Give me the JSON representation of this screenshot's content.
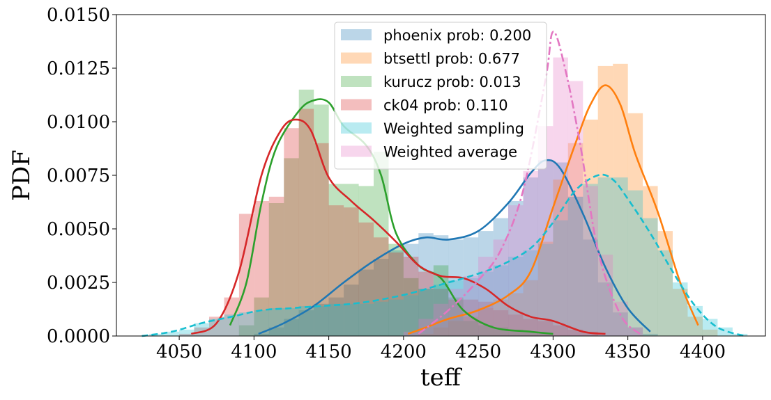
{
  "chart_data": {
    "type": "histogram+kde",
    "xlabel": "teff",
    "ylabel": "PDF",
    "xlim": [
      4008,
      4442
    ],
    "ylim": [
      0,
      0.015
    ],
    "xticks": [
      "4050",
      "4100",
      "4150",
      "4200",
      "4250",
      "4300",
      "4350",
      "4400"
    ],
    "yticks": [
      "0.0000",
      "0.0025",
      "0.0050",
      "0.0075",
      "0.0100",
      "0.0125",
      "0.0150"
    ],
    "grid": false,
    "legend_position": "top-center",
    "bin_width": 10,
    "series": [
      {
        "name": "phoenix prob: 0.200",
        "color": "#1f77b4",
        "hist_bins": [
          [
            4100,
            0.0001
          ],
          [
            4110,
            0.0004
          ],
          [
            4120,
            0.0008
          ],
          [
            4130,
            0.0012
          ],
          [
            4140,
            0.0015
          ],
          [
            4150,
            0.0018
          ],
          [
            4160,
            0.0024
          ],
          [
            4170,
            0.0031
          ],
          [
            4180,
            0.0036
          ],
          [
            4190,
            0.004
          ],
          [
            4200,
            0.0043
          ],
          [
            4210,
            0.0048
          ],
          [
            4220,
            0.0047
          ],
          [
            4230,
            0.0045
          ],
          [
            4240,
            0.0046
          ],
          [
            4250,
            0.0049
          ],
          [
            4260,
            0.0055
          ],
          [
            4270,
            0.0063
          ],
          [
            4280,
            0.0074
          ],
          [
            4290,
            0.0082
          ],
          [
            4300,
            0.0081
          ],
          [
            4310,
            0.0065
          ],
          [
            4320,
            0.0045
          ],
          [
            4330,
            0.0025
          ],
          [
            4340,
            0.0011
          ],
          [
            4350,
            0.0004
          ],
          [
            4360,
            0.0001
          ]
        ],
        "kde": [
          [
            4103,
            0.0001
          ],
          [
            4120,
            0.0006
          ],
          [
            4140,
            0.0014
          ],
          [
            4160,
            0.0025
          ],
          [
            4180,
            0.0035
          ],
          [
            4200,
            0.0043
          ],
          [
            4215,
            0.0046
          ],
          [
            4230,
            0.0045
          ],
          [
            4250,
            0.0049
          ],
          [
            4270,
            0.0062
          ],
          [
            4285,
            0.0076
          ],
          [
            4295,
            0.0082
          ],
          [
            4305,
            0.0078
          ],
          [
            4320,
            0.0057
          ],
          [
            4335,
            0.0032
          ],
          [
            4350,
            0.0013
          ],
          [
            4365,
            0.0002
          ]
        ]
      },
      {
        "name": "btsettl prob: 0.677",
        "color": "#ff7f0e",
        "hist_bins": [
          [
            4210,
            0.0001
          ],
          [
            4220,
            0.0004
          ],
          [
            4230,
            0.0007
          ],
          [
            4240,
            0.0009
          ],
          [
            4250,
            0.0013
          ],
          [
            4260,
            0.0017
          ],
          [
            4270,
            0.002
          ],
          [
            4280,
            0.0026
          ],
          [
            4290,
            0.0044
          ],
          [
            4300,
            0.0073
          ],
          [
            4310,
            0.009
          ],
          [
            4320,
            0.0101
          ],
          [
            4330,
            0.0126
          ],
          [
            4340,
            0.0127
          ],
          [
            4350,
            0.0104
          ],
          [
            4360,
            0.007
          ],
          [
            4370,
            0.0049
          ],
          [
            4380,
            0.0022
          ],
          [
            4390,
            0.0009
          ],
          [
            4400,
            0.0003
          ]
        ],
        "kde": [
          [
            4203,
            0.0001
          ],
          [
            4215,
            0.0004
          ],
          [
            4230,
            0.0008
          ],
          [
            4250,
            0.0012
          ],
          [
            4270,
            0.0019
          ],
          [
            4285,
            0.003
          ],
          [
            4300,
            0.006
          ],
          [
            4315,
            0.009
          ],
          [
            4325,
            0.0108
          ],
          [
            4335,
            0.0117
          ],
          [
            4345,
            0.0108
          ],
          [
            4355,
            0.0085
          ],
          [
            4370,
            0.0058
          ],
          [
            4385,
            0.0025
          ],
          [
            4397,
            0.0005
          ]
        ]
      },
      {
        "name": "kurucz prob: 0.013",
        "color": "#2ca02c",
        "hist_bins": [
          [
            4090,
            0.0005
          ],
          [
            4100,
            0.0018
          ],
          [
            4110,
            0.0062
          ],
          [
            4120,
            0.0083
          ],
          [
            4130,
            0.0115
          ],
          [
            4140,
            0.0108
          ],
          [
            4150,
            0.0071
          ],
          [
            4160,
            0.0071
          ],
          [
            4170,
            0.007
          ],
          [
            4180,
            0.0086
          ],
          [
            4190,
            0.0043
          ],
          [
            4200,
            0.0027
          ],
          [
            4210,
            0.0022
          ],
          [
            4220,
            0.0033
          ],
          [
            4230,
            0.0018
          ],
          [
            4240,
            0.0007
          ],
          [
            4250,
            0.0005
          ],
          [
            4260,
            0.0004
          ],
          [
            4270,
            0.0003
          ],
          [
            4280,
            0.0002
          ],
          [
            4290,
            0.0001
          ]
        ],
        "kde": [
          [
            4084,
            0.0005
          ],
          [
            4095,
            0.0025
          ],
          [
            4105,
            0.0062
          ],
          [
            4115,
            0.0088
          ],
          [
            4130,
            0.0105
          ],
          [
            4140,
            0.011
          ],
          [
            4150,
            0.0109
          ],
          [
            4160,
            0.0098
          ],
          [
            4175,
            0.0089
          ],
          [
            4185,
            0.0075
          ],
          [
            4195,
            0.0048
          ],
          [
            4210,
            0.0033
          ],
          [
            4225,
            0.0027
          ],
          [
            4240,
            0.0012
          ],
          [
            4260,
            0.0004
          ],
          [
            4285,
            0.0002
          ],
          [
            4300,
            0.0001
          ]
        ]
      },
      {
        "name": "ck04 prob: 0.110",
        "color": "#d62728",
        "hist_bins": [
          [
            4050,
            0.0001
          ],
          [
            4060,
            0.0004
          ],
          [
            4070,
            0.0009
          ],
          [
            4080,
            0.0018
          ],
          [
            4090,
            0.0057
          ],
          [
            4100,
            0.0063
          ],
          [
            4110,
            0.0065
          ],
          [
            4120,
            0.0097
          ],
          [
            4130,
            0.0106
          ],
          [
            4140,
            0.009
          ],
          [
            4150,
            0.0061
          ],
          [
            4160,
            0.006
          ],
          [
            4170,
            0.0053
          ],
          [
            4180,
            0.0046
          ],
          [
            4190,
            0.0039
          ],
          [
            4200,
            0.0037
          ],
          [
            4210,
            0.003
          ],
          [
            4220,
            0.0022
          ],
          [
            4230,
            0.0017
          ],
          [
            4240,
            0.0017
          ],
          [
            4250,
            0.0016
          ],
          [
            4260,
            0.0012
          ],
          [
            4270,
            0.001
          ],
          [
            4280,
            0.0008
          ],
          [
            4290,
            0.0007
          ],
          [
            4300,
            0.0005
          ],
          [
            4310,
            0.0003
          ],
          [
            4320,
            0.0002
          ]
        ],
        "kde": [
          [
            4058,
            0.0001
          ],
          [
            4075,
            0.0006
          ],
          [
            4090,
            0.003
          ],
          [
            4105,
            0.0075
          ],
          [
            4118,
            0.0096
          ],
          [
            4128,
            0.0101
          ],
          [
            4138,
            0.0096
          ],
          [
            4150,
            0.0074
          ],
          [
            4165,
            0.0063
          ],
          [
            4180,
            0.0054
          ],
          [
            4195,
            0.0044
          ],
          [
            4210,
            0.0033
          ],
          [
            4225,
            0.0028
          ],
          [
            4240,
            0.0027
          ],
          [
            4255,
            0.0022
          ],
          [
            4270,
            0.0014
          ],
          [
            4285,
            0.0009
          ],
          [
            4300,
            0.0007
          ],
          [
            4320,
            0.0002
          ],
          [
            4335,
            0.0001
          ]
        ]
      },
      {
        "name": "Weighted sampling",
        "color": "#17becf",
        "line_style": "dashed",
        "hist_bins": [
          [
            4030,
            0.0001
          ],
          [
            4040,
            0.0002
          ],
          [
            4050,
            0.0003
          ],
          [
            4060,
            0.0006
          ],
          [
            4070,
            0.0008
          ],
          [
            4080,
            0.001
          ],
          [
            4090,
            0.0011
          ],
          [
            4100,
            0.0012
          ],
          [
            4110,
            0.0013
          ],
          [
            4120,
            0.0013
          ],
          [
            4130,
            0.0014
          ],
          [
            4140,
            0.0014
          ],
          [
            4150,
            0.0015
          ],
          [
            4160,
            0.0015
          ],
          [
            4170,
            0.0015
          ],
          [
            4180,
            0.0016
          ],
          [
            4190,
            0.0017
          ],
          [
            4200,
            0.0019
          ],
          [
            4210,
            0.0022
          ],
          [
            4220,
            0.0024
          ],
          [
            4230,
            0.0026
          ],
          [
            4240,
            0.0027
          ],
          [
            4250,
            0.003
          ],
          [
            4260,
            0.0033
          ],
          [
            4270,
            0.0037
          ],
          [
            4280,
            0.004
          ],
          [
            4290,
            0.0043
          ],
          [
            4300,
            0.0054
          ],
          [
            4310,
            0.0065
          ],
          [
            4320,
            0.0071
          ],
          [
            4330,
            0.0074
          ],
          [
            4340,
            0.0074
          ],
          [
            4350,
            0.0068
          ],
          [
            4360,
            0.0055
          ],
          [
            4370,
            0.004
          ],
          [
            4380,
            0.0025
          ],
          [
            4390,
            0.0014
          ],
          [
            4400,
            0.0008
          ],
          [
            4410,
            0.0004
          ],
          [
            4420,
            0.0001
          ]
        ],
        "kde": [
          [
            4025,
            0.0
          ],
          [
            4045,
            0.0002
          ],
          [
            4065,
            0.0006
          ],
          [
            4085,
            0.0009
          ],
          [
            4105,
            0.0012
          ],
          [
            4125,
            0.0013
          ],
          [
            4145,
            0.0014
          ],
          [
            4165,
            0.0015
          ],
          [
            4185,
            0.0017
          ],
          [
            4205,
            0.002
          ],
          [
            4225,
            0.0024
          ],
          [
            4245,
            0.0028
          ],
          [
            4265,
            0.0033
          ],
          [
            4285,
            0.0041
          ],
          [
            4300,
            0.0053
          ],
          [
            4315,
            0.0068
          ],
          [
            4330,
            0.0075
          ],
          [
            4340,
            0.0073
          ],
          [
            4350,
            0.0064
          ],
          [
            4365,
            0.0048
          ],
          [
            4380,
            0.003
          ],
          [
            4395,
            0.0014
          ],
          [
            4410,
            0.0004
          ],
          [
            4428,
            0.0
          ]
        ]
      },
      {
        "name": "Weighted average",
        "color": "#e377c2",
        "line_style": "dash-dot",
        "hist_bins": [
          [
            4200,
            0.0002
          ],
          [
            4210,
            0.0008
          ],
          [
            4220,
            0.0015
          ],
          [
            4230,
            0.0022
          ],
          [
            4240,
            0.0028
          ],
          [
            4250,
            0.0037
          ],
          [
            4260,
            0.0045
          ],
          [
            4270,
            0.0061
          ],
          [
            4280,
            0.0077
          ],
          [
            4290,
            0.0098
          ],
          [
            4300,
            0.013
          ],
          [
            4310,
            0.0119
          ],
          [
            4320,
            0.007
          ],
          [
            4330,
            0.0038
          ],
          [
            4340,
            0.0016
          ],
          [
            4350,
            0.0004
          ]
        ],
        "kde": [
          [
            4210,
            0.0001
          ],
          [
            4230,
            0.0012
          ],
          [
            4250,
            0.0026
          ],
          [
            4265,
            0.004
          ],
          [
            4280,
            0.0068
          ],
          [
            4295,
            0.012
          ],
          [
            4300,
            0.0142
          ],
          [
            4308,
            0.0125
          ],
          [
            4318,
            0.009
          ],
          [
            4330,
            0.004
          ],
          [
            4345,
            0.001
          ],
          [
            4358,
            0.0001
          ]
        ]
      }
    ]
  }
}
